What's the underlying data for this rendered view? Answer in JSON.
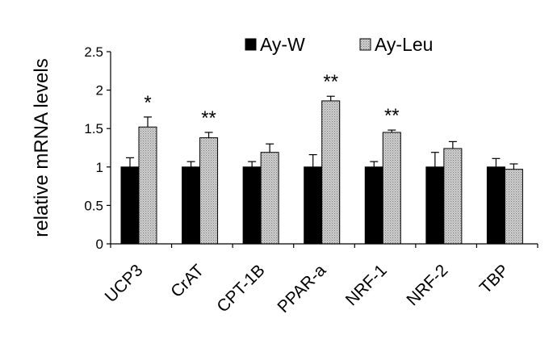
{
  "chart_data": {
    "type": "bar",
    "ylabel": "relative mRNA levels",
    "xlabel": "",
    "ylim": [
      0,
      2.5
    ],
    "yticks": [
      "0",
      "0.5",
      "1",
      "1.5",
      "2",
      "2.5"
    ],
    "categories": [
      "UCP3",
      "CrAT",
      "CPT-1B",
      "PPAR-a",
      "NRF-1",
      "NRF-2",
      "TBP"
    ],
    "series": [
      {
        "name": "Ay-W",
        "color": "#000000",
        "values": [
          1.0,
          1.0,
          1.0,
          1.0,
          1.0,
          1.0,
          1.0
        ],
        "errors": [
          0.12,
          0.07,
          0.07,
          0.16,
          0.07,
          0.19,
          0.11
        ]
      },
      {
        "name": "Ay-Leu",
        "color": "#c0c0c0",
        "pattern": "dotted-gray",
        "values": [
          1.52,
          1.38,
          1.19,
          1.86,
          1.45,
          1.24,
          0.97
        ],
        "errors": [
          0.13,
          0.07,
          0.11,
          0.06,
          0.03,
          0.09,
          0.07
        ]
      }
    ],
    "significance": [
      "*",
      "**",
      "",
      "**",
      "**",
      "",
      ""
    ],
    "legend_position": "top",
    "grid": false
  }
}
